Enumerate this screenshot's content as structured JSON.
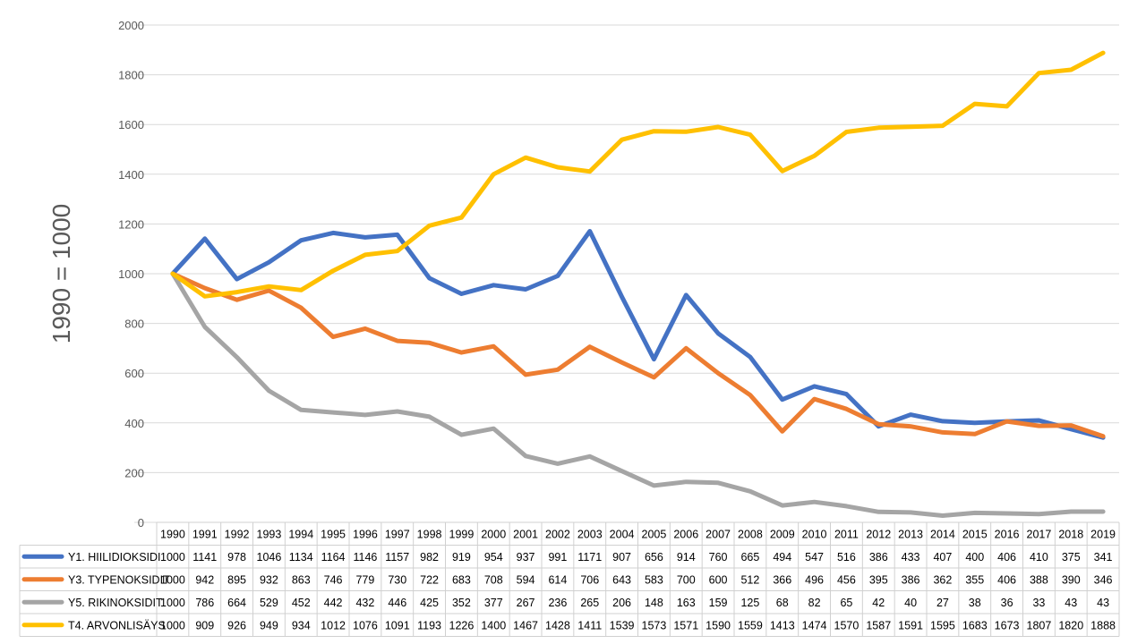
{
  "chart_data": {
    "type": "line",
    "title": "",
    "xlabel": "",
    "ylabel": "1990 = 1000",
    "ylim": [
      0,
      2000
    ],
    "yticks": [
      0,
      200,
      400,
      600,
      800,
      1000,
      1200,
      1400,
      1600,
      1800,
      2000
    ],
    "grid": true,
    "legend": "data-table-below",
    "categories": [
      "1990",
      "1991",
      "1992",
      "1993",
      "1994",
      "1995",
      "1996",
      "1997",
      "1998",
      "1999",
      "2000",
      "2001",
      "2002",
      "2003",
      "2004",
      "2005",
      "2006",
      "2007",
      "2008",
      "2009",
      "2010",
      "2011",
      "2012",
      "2013",
      "2014",
      "2015",
      "2016",
      "2017",
      "2018",
      "2019"
    ],
    "series": [
      {
        "name": "Y1. HIILIDIOKSIDI",
        "color": "#4472C4",
        "values": [
          1000,
          1141,
          978,
          1046,
          1134,
          1164,
          1146,
          1157,
          982,
          919,
          954,
          937,
          991,
          1171,
          907,
          656,
          914,
          760,
          665,
          494,
          547,
          516,
          386,
          433,
          407,
          400,
          406,
          410,
          375,
          341
        ]
      },
      {
        "name": "Y3. TYPENOKSIDIT",
        "color": "#ED7D31",
        "values": [
          1000,
          942,
          895,
          932,
          863,
          746,
          779,
          730,
          722,
          683,
          708,
          594,
          614,
          706,
          643,
          583,
          700,
          600,
          512,
          366,
          496,
          456,
          395,
          386,
          362,
          355,
          406,
          388,
          390,
          346
        ]
      },
      {
        "name": "Y5. RIKINOKSIDIT",
        "color": "#A5A5A5",
        "values": [
          1000,
          786,
          664,
          529,
          452,
          442,
          432,
          446,
          425,
          352,
          377,
          267,
          236,
          265,
          206,
          148,
          163,
          159,
          125,
          68,
          82,
          65,
          42,
          40,
          27,
          38,
          36,
          33,
          43,
          43
        ]
      },
      {
        "name": "T4. ARVONLISÄYS",
        "color": "#FFC000",
        "values": [
          1000,
          909,
          926,
          949,
          934,
          1012,
          1076,
          1091,
          1193,
          1226,
          1400,
          1467,
          1428,
          1411,
          1539,
          1573,
          1571,
          1590,
          1559,
          1413,
          1474,
          1570,
          1587,
          1591,
          1595,
          1683,
          1673,
          1807,
          1820,
          1888
        ]
      }
    ]
  }
}
